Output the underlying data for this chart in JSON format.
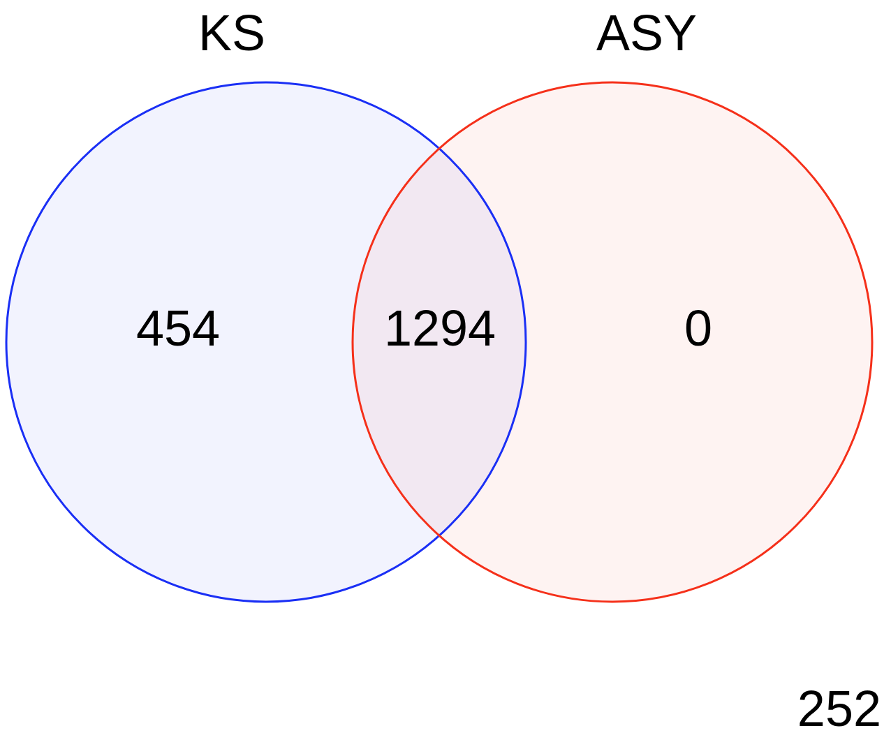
{
  "chart_data": {
    "type": "other",
    "categories": [
      null,
      null,
      null,
      null
    ],
    "values": [
      454,
      1294,
      0,
      252
    ],
    "colors": [
      "#1a2ff5",
      "#8a2f8a",
      "#f5301a",
      "#ffffff"
    ],
    "data_labels": true,
    "annotations": [
      "KS",
      "ASY"
    ]
  }
}
